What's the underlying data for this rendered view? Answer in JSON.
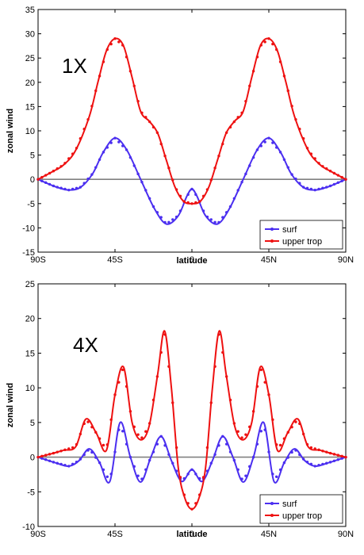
{
  "chart_data": [
    {
      "type": "line",
      "annotation": "1X",
      "xlabel": "latitude",
      "ylabel": "zonal wind",
      "xlim": [
        -90,
        90
      ],
      "ylim": [
        -15,
        35
      ],
      "xticks": [
        -90,
        -45,
        0,
        45,
        90
      ],
      "xticklabels": [
        "90S",
        "45S",
        "0",
        "45N",
        "90N"
      ],
      "yticks": [
        -15,
        -10,
        -5,
        0,
        5,
        10,
        15,
        20,
        25,
        30,
        35
      ],
      "grid": false,
      "legend_position": "bottom-right",
      "colors": {
        "surf": "#4b2ff0",
        "upper trop": "#ee1111"
      },
      "zero_line": true,
      "series": [
        {
          "name": "surf",
          "x": [
            -90,
            -80,
            -72,
            -65,
            -58,
            -52,
            -45,
            -38,
            -30,
            -22,
            -15,
            -8,
            -3,
            0,
            3,
            8,
            15,
            22,
            30,
            38,
            45,
            52,
            58,
            65,
            72,
            80,
            90
          ],
          "values": [
            0,
            -1.5,
            -2.2,
            -1.6,
            1.2,
            5.5,
            8.5,
            6.0,
            0.0,
            -6.0,
            -9.2,
            -7.5,
            -3.5,
            -2.0,
            -3.5,
            -7.5,
            -9.2,
            -6.0,
            0.0,
            6.0,
            8.5,
            5.5,
            1.2,
            -1.6,
            -2.2,
            -1.5,
            0
          ]
        },
        {
          "name": "upper trop",
          "x": [
            -90,
            -82,
            -75,
            -68,
            -60,
            -55,
            -50,
            -45,
            -40,
            -35,
            -30,
            -25,
            -20,
            -15,
            -10,
            -5,
            0,
            5,
            10,
            15,
            20,
            25,
            30,
            35,
            40,
            45,
            50,
            55,
            60,
            68,
            75,
            82,
            90
          ],
          "values": [
            0,
            1.5,
            3.0,
            6.0,
            13.0,
            20.0,
            26.5,
            29.0,
            27.5,
            21.0,
            14.0,
            12.0,
            9.5,
            4.0,
            -1.5,
            -4.5,
            -5.0,
            -4.5,
            -1.5,
            4.0,
            9.5,
            12.0,
            14.0,
            21.0,
            27.5,
            29.0,
            26.5,
            20.0,
            13.0,
            6.0,
            3.0,
            1.5,
            0
          ]
        }
      ]
    },
    {
      "type": "line",
      "annotation": "4X",
      "xlabel": "latitude",
      "ylabel": "zonal wind",
      "xlim": [
        -90,
        90
      ],
      "ylim": [
        -10,
        25
      ],
      "xticks": [
        -90,
        -45,
        0,
        45,
        90
      ],
      "xticklabels": [
        "90S",
        "45S",
        "0",
        "45N",
        "90N"
      ],
      "yticks": [
        -10,
        -5,
        0,
        5,
        10,
        15,
        20,
        25
      ],
      "grid": false,
      "legend_position": "bottom-right",
      "colors": {
        "surf": "#4b2ff0",
        "upper trop": "#ee1111"
      },
      "zero_line": true,
      "series": [
        {
          "name": "surf",
          "x": [
            -90,
            -80,
            -72,
            -66,
            -60,
            -54,
            -48,
            -42,
            -36,
            -30,
            -24,
            -18,
            -12,
            -6,
            0,
            6,
            12,
            18,
            24,
            30,
            36,
            42,
            48,
            54,
            60,
            66,
            72,
            80,
            90
          ],
          "values": [
            0,
            -0.8,
            -1.3,
            -0.5,
            1.2,
            -0.8,
            -3.5,
            5.0,
            0.0,
            -3.6,
            0.0,
            3.0,
            -0.5,
            -3.5,
            -1.8,
            -3.5,
            -0.5,
            3.0,
            0.0,
            -3.6,
            0.0,
            5.0,
            -3.5,
            -0.8,
            1.2,
            -0.5,
            -1.3,
            -0.8,
            0
          ]
        },
        {
          "name": "upper trop",
          "x": [
            -90,
            -82,
            -75,
            -68,
            -62,
            -56,
            -50,
            -45,
            -40,
            -35,
            -30,
            -25,
            -20,
            -16,
            -12,
            -8,
            -4,
            0,
            4,
            8,
            12,
            16,
            20,
            25,
            30,
            35,
            40,
            45,
            50,
            56,
            62,
            68,
            75,
            82,
            90
          ],
          "values": [
            0,
            0.5,
            1.0,
            1.5,
            5.5,
            3.5,
            1.0,
            9.0,
            13.0,
            5.0,
            2.5,
            4.5,
            12.0,
            18.2,
            10.0,
            -1.5,
            -6.0,
            -7.5,
            -6.0,
            -1.5,
            10.0,
            18.2,
            12.0,
            4.5,
            2.5,
            5.0,
            13.0,
            9.0,
            1.0,
            3.5,
            5.5,
            1.5,
            1.0,
            0.5,
            0
          ]
        }
      ]
    }
  ]
}
